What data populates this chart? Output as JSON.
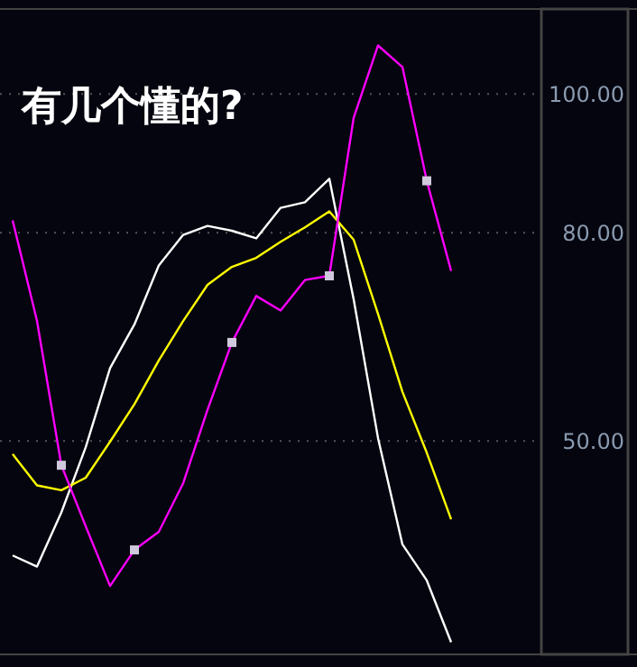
{
  "chart_data": {
    "type": "line",
    "title": "有几个懂的?",
    "categories": [
      null,
      null,
      null,
      null,
      null,
      null,
      null,
      null,
      null,
      null,
      null,
      null,
      null,
      null,
      null,
      null,
      null,
      null,
      null,
      null,
      null,
      null
    ],
    "series": [
      {
        "color": "#ffffff",
        "values": [
          33.5,
          31.9,
          39.7,
          49.1,
          60.5,
          66.8,
          75.3,
          79.7,
          81.0,
          80.3,
          79.2,
          83.6,
          84.4,
          87.8,
          70.4,
          50.4,
          35.1,
          29.9,
          21.0,
          null,
          null,
          null
        ]
      },
      {
        "color": "#ffff00",
        "values": [
          48.1,
          43.6,
          42.9,
          44.7,
          49.9,
          55.3,
          61.6,
          67.3,
          72.5,
          75.1,
          76.4,
          78.7,
          80.8,
          83.1,
          79.0,
          68.3,
          57.1,
          48.3,
          38.7,
          null,
          null,
          null
        ]
      },
      {
        "color": "#ff00ff",
        "values": [
          81.8,
          67.3,
          46.5,
          37.7,
          29.1,
          34.3,
          36.9,
          43.9,
          54.5,
          64.2,
          70.9,
          68.8,
          73.2,
          73.8,
          96.6,
          107.0,
          103.9,
          87.5,
          74.5,
          null,
          null,
          null
        ]
      },
      {
        "type": "scatter",
        "marker": "square",
        "color": "#d0c8dc",
        "values": [
          null,
          null,
          46.5,
          null,
          null,
          34.3,
          null,
          null,
          null,
          64.2,
          null,
          null,
          null,
          73.8,
          null,
          null,
          null,
          87.5,
          null,
          null,
          null,
          null
        ]
      }
    ],
    "ylim": [
      19.5,
      112
    ],
    "yticks": [
      {
        "value": 50,
        "label": "50.00"
      },
      {
        "value": 80,
        "label": "80.00"
      },
      {
        "value": 100,
        "label": "100.00"
      }
    ],
    "grid": "y",
    "tick_labels": "y",
    "line_style": "solid"
  }
}
